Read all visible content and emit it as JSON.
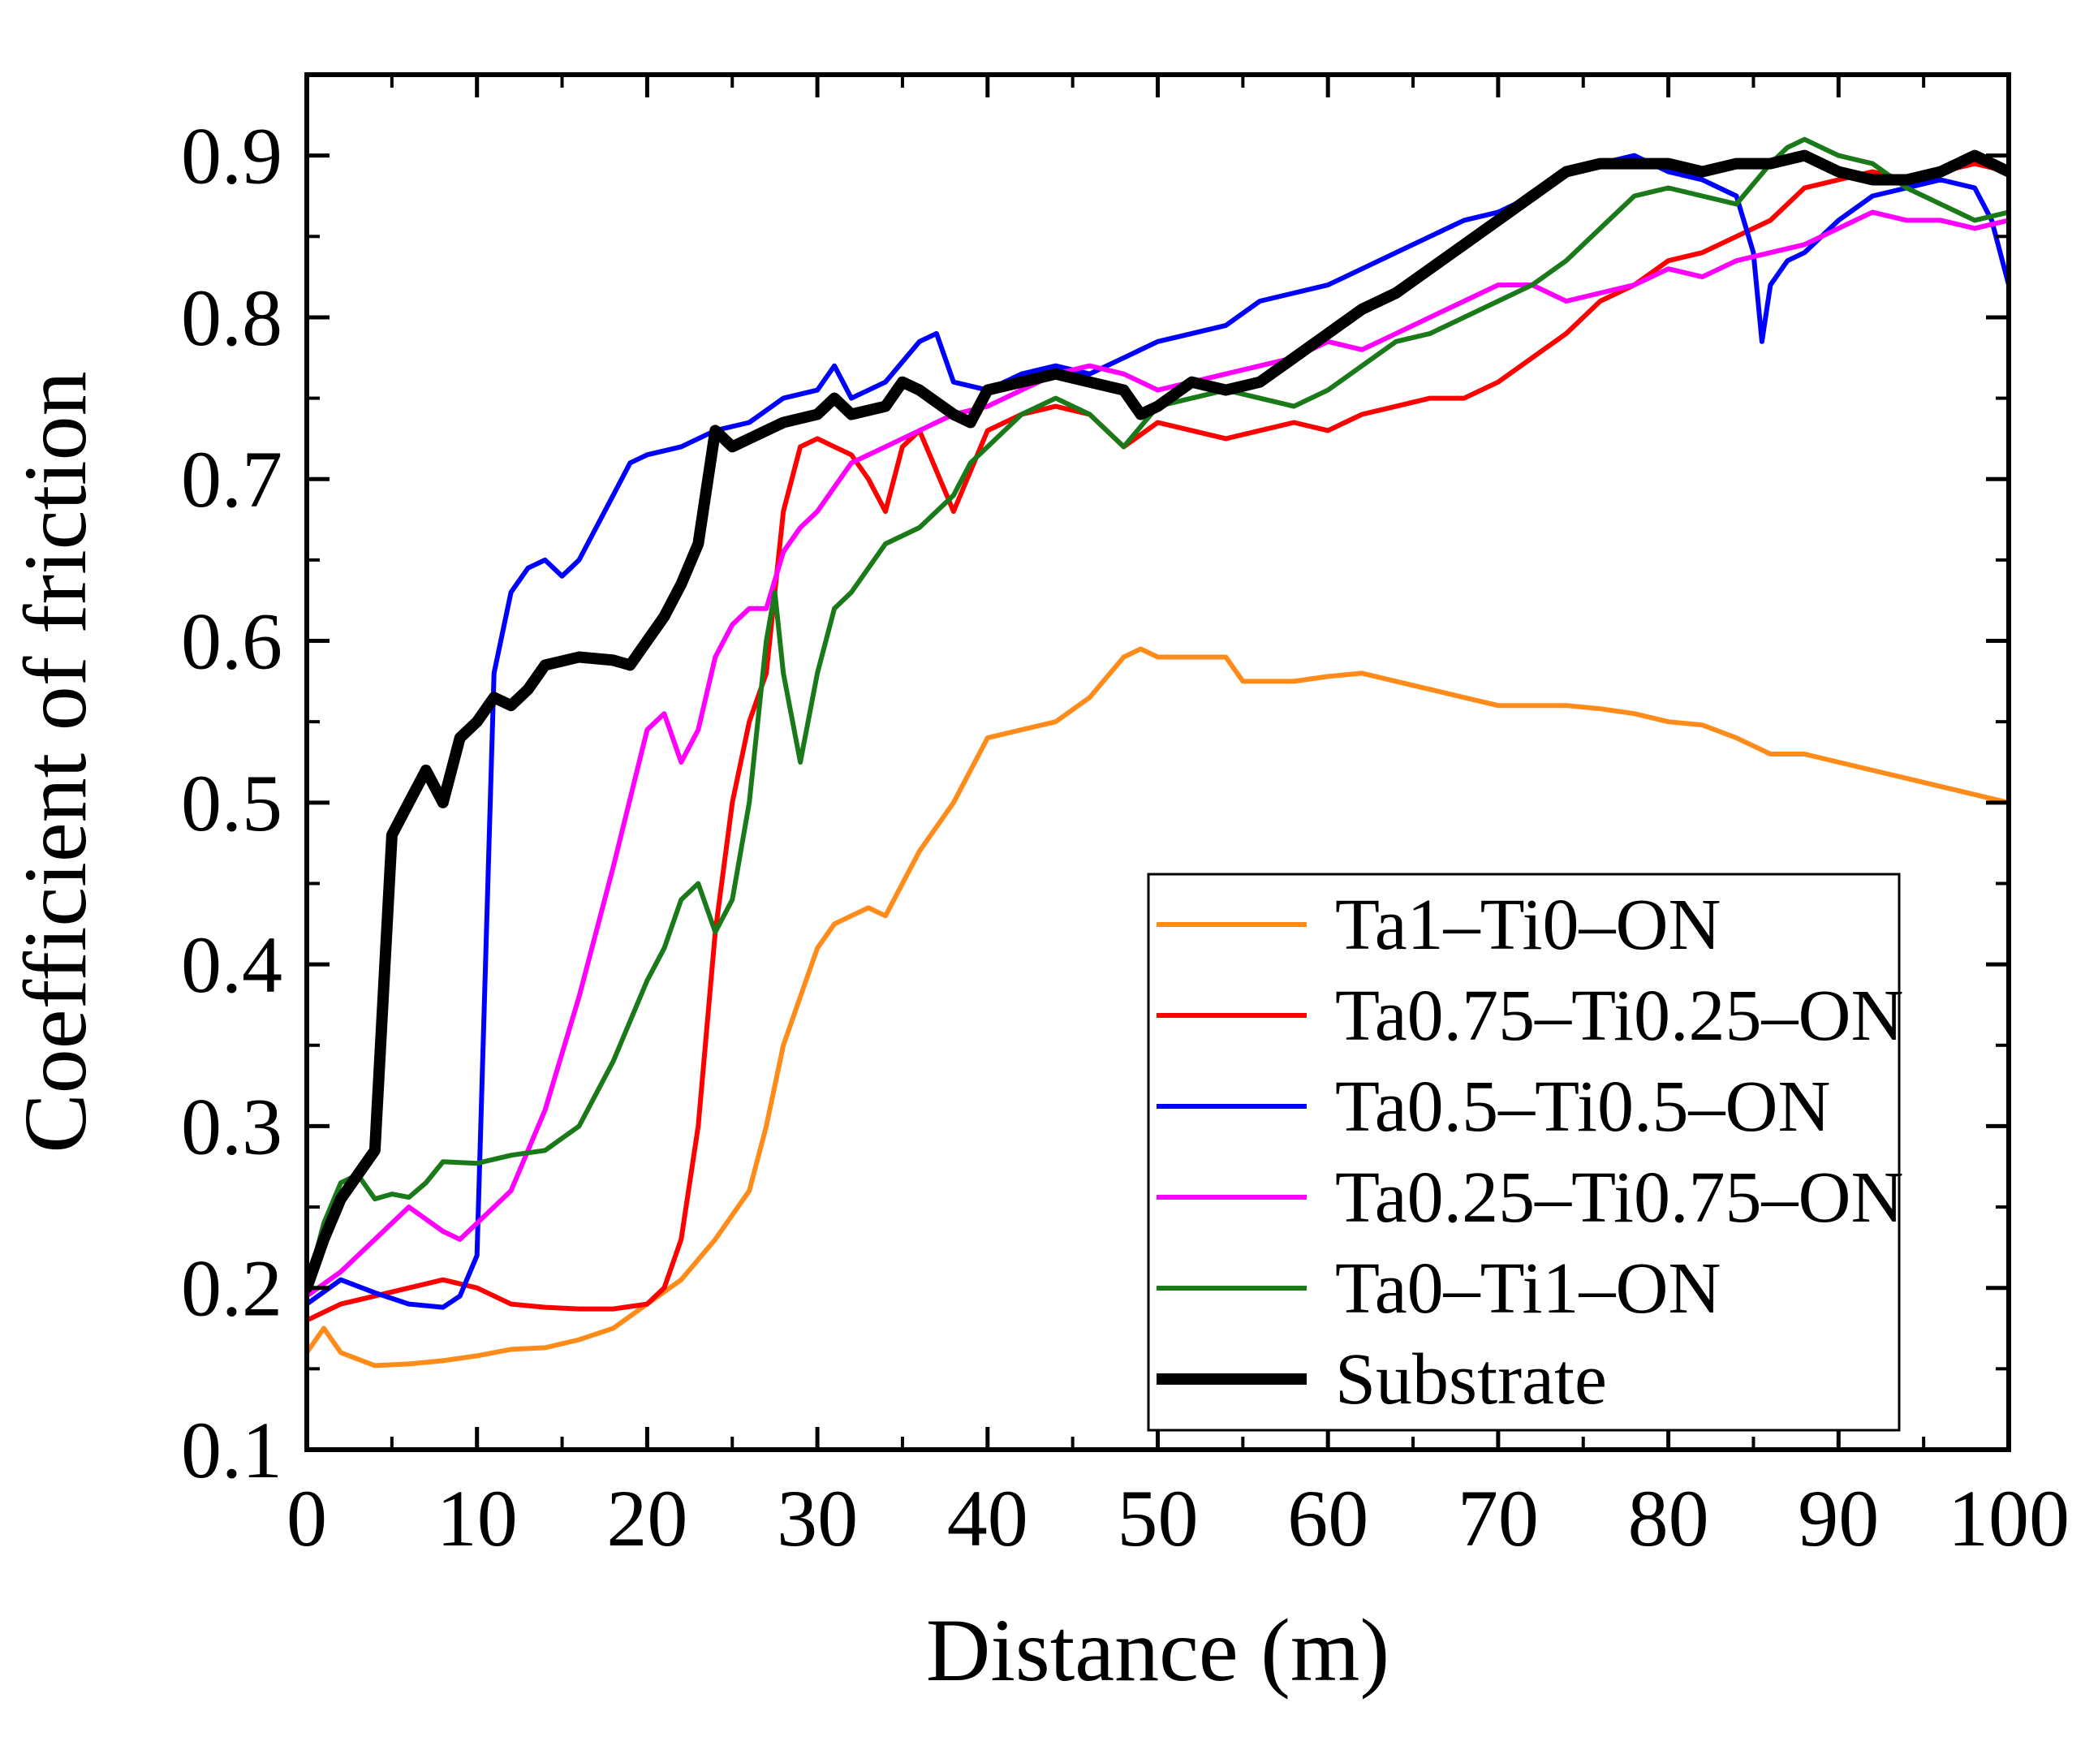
{
  "chart_data": {
    "type": "line",
    "title": "",
    "xlabel": "Distance (m)",
    "ylabel": "Coefficient of friction",
    "xlim": [
      0,
      100
    ],
    "ylim": [
      0.1,
      0.95
    ],
    "xticks": [
      0,
      10,
      20,
      30,
      40,
      50,
      60,
      70,
      80,
      90,
      100
    ],
    "xtick_labels": [
      "0",
      "10",
      "20",
      "30",
      "40",
      "50",
      "60",
      "70",
      "80",
      "90",
      "100"
    ],
    "yticks": [
      0.1,
      0.2,
      0.3,
      0.4,
      0.5,
      0.6,
      0.7,
      0.8,
      0.9
    ],
    "ytick_labels": [
      "0.1",
      "0.2",
      "0.3",
      "0.4",
      "0.5",
      "0.6",
      "0.7",
      "0.8",
      "0.9"
    ],
    "grid": false,
    "legend_position": "bottom-right",
    "series": [
      {
        "name": "Ta1–Ti0–ON",
        "color": "#ff8c1a",
        "x": [
          0,
          1,
          2,
          4,
          6,
          8,
          10,
          12,
          14,
          16,
          18,
          20,
          22,
          24,
          26,
          27,
          28,
          29,
          30,
          31,
          32,
          33,
          34,
          36,
          38,
          40,
          42,
          44,
          46,
          48,
          49,
          50,
          52,
          54,
          55,
          56,
          58,
          60,
          62,
          64,
          66,
          68,
          70,
          72,
          74,
          76,
          78,
          80,
          82,
          84,
          86,
          88,
          90,
          92,
          94,
          96,
          98,
          100
        ],
        "y": [
          0.16,
          0.175,
          0.16,
          0.152,
          0.153,
          0.155,
          0.158,
          0.162,
          0.163,
          0.168,
          0.175,
          0.19,
          0.205,
          0.23,
          0.26,
          0.3,
          0.35,
          0.38,
          0.41,
          0.425,
          0.43,
          0.435,
          0.43,
          0.47,
          0.5,
          0.54,
          0.545,
          0.55,
          0.565,
          0.59,
          0.595,
          0.59,
          0.59,
          0.59,
          0.575,
          0.575,
          0.575,
          0.578,
          0.58,
          0.575,
          0.57,
          0.565,
          0.56,
          0.56,
          0.56,
          0.558,
          0.555,
          0.55,
          0.548,
          0.54,
          0.53,
          0.53,
          0.525,
          0.52,
          0.515,
          0.51,
          0.505,
          0.5
        ]
      },
      {
        "name": "Ta0.75–Ti0.25–ON",
        "color": "#ff0000",
        "x": [
          0,
          2,
          4,
          6,
          8,
          10,
          12,
          14,
          16,
          18,
          20,
          21,
          22,
          23,
          24,
          25,
          26,
          27,
          28,
          29,
          30,
          31,
          32,
          33,
          34,
          35,
          36,
          38,
          40,
          42,
          44,
          46,
          48,
          50,
          52,
          54,
          56,
          58,
          60,
          62,
          64,
          66,
          68,
          70,
          72,
          74,
          76,
          78,
          80,
          82,
          84,
          86,
          88,
          90,
          92,
          94,
          96,
          98,
          100
        ],
        "y": [
          0.18,
          0.19,
          0.195,
          0.2,
          0.205,
          0.2,
          0.19,
          0.188,
          0.187,
          0.187,
          0.19,
          0.2,
          0.23,
          0.3,
          0.42,
          0.5,
          0.55,
          0.58,
          0.68,
          0.72,
          0.725,
          0.72,
          0.715,
          0.7,
          0.68,
          0.72,
          0.73,
          0.68,
          0.73,
          0.74,
          0.745,
          0.74,
          0.72,
          0.735,
          0.73,
          0.725,
          0.73,
          0.735,
          0.73,
          0.74,
          0.745,
          0.75,
          0.75,
          0.76,
          0.775,
          0.79,
          0.81,
          0.82,
          0.835,
          0.84,
          0.85,
          0.86,
          0.88,
          0.885,
          0.89,
          0.885,
          0.89,
          0.895,
          0.89
        ]
      },
      {
        "name": "Ta0.5–Ti0.5–ON",
        "color": "#0000ff",
        "x": [
          0,
          2,
          4,
          6,
          8,
          9,
          10,
          10.5,
          11,
          12,
          13,
          14,
          15,
          16,
          18,
          19,
          20,
          22,
          24,
          26,
          28,
          30,
          31,
          32,
          34,
          36,
          37,
          38,
          40,
          42,
          44,
          46,
          48,
          50,
          52,
          54,
          56,
          58,
          60,
          62,
          64,
          66,
          68,
          70,
          72,
          74,
          76,
          78,
          80,
          82,
          84,
          85,
          85.5,
          86,
          87,
          88,
          90,
          92,
          94,
          96,
          98,
          99,
          100
        ],
        "y": [
          0.19,
          0.205,
          0.197,
          0.19,
          0.188,
          0.195,
          0.22,
          0.4,
          0.58,
          0.63,
          0.645,
          0.65,
          0.64,
          0.65,
          0.69,
          0.71,
          0.715,
          0.72,
          0.73,
          0.735,
          0.75,
          0.755,
          0.77,
          0.75,
          0.76,
          0.785,
          0.79,
          0.76,
          0.755,
          0.765,
          0.77,
          0.765,
          0.775,
          0.785,
          0.79,
          0.795,
          0.81,
          0.815,
          0.82,
          0.83,
          0.84,
          0.85,
          0.86,
          0.865,
          0.875,
          0.89,
          0.895,
          0.9,
          0.89,
          0.885,
          0.875,
          0.84,
          0.785,
          0.82,
          0.835,
          0.84,
          0.86,
          0.875,
          0.88,
          0.885,
          0.88,
          0.86,
          0.82
        ]
      },
      {
        "name": "Ta0.25–Ti0.75–ON",
        "color": "#ff00ff",
        "x": [
          0,
          2,
          4,
          6,
          8,
          9,
          10,
          12,
          14,
          16,
          18,
          20,
          21,
          22,
          23,
          24,
          25,
          26,
          27,
          28,
          29,
          30,
          32,
          34,
          36,
          38,
          40,
          42,
          44,
          46,
          48,
          50,
          52,
          54,
          56,
          58,
          60,
          62,
          64,
          66,
          68,
          70,
          72,
          74,
          76,
          78,
          80,
          82,
          84,
          86,
          88,
          90,
          92,
          94,
          96,
          98,
          100
        ],
        "y": [
          0.195,
          0.21,
          0.23,
          0.25,
          0.235,
          0.23,
          0.24,
          0.26,
          0.31,
          0.38,
          0.46,
          0.545,
          0.555,
          0.525,
          0.545,
          0.59,
          0.61,
          0.62,
          0.62,
          0.655,
          0.67,
          0.68,
          0.71,
          0.72,
          0.73,
          0.74,
          0.745,
          0.755,
          0.765,
          0.77,
          0.765,
          0.755,
          0.76,
          0.765,
          0.77,
          0.775,
          0.785,
          0.78,
          0.79,
          0.8,
          0.81,
          0.82,
          0.82,
          0.81,
          0.815,
          0.82,
          0.83,
          0.825,
          0.835,
          0.84,
          0.845,
          0.855,
          0.865,
          0.86,
          0.86,
          0.855,
          0.86
        ]
      },
      {
        "name": "Ta0–Ti1–ON",
        "color": "#1a7a1a",
        "x": [
          0,
          1,
          2,
          3,
          4,
          5,
          6,
          7,
          8,
          10,
          12,
          14,
          16,
          18,
          20,
          21,
          22,
          23,
          24,
          25,
          26,
          27,
          27.5,
          28,
          29,
          30,
          31,
          32,
          34,
          36,
          38,
          39,
          40,
          42,
          44,
          46,
          48,
          50,
          52,
          54,
          56,
          58,
          60,
          62,
          64,
          66,
          68,
          70,
          72,
          74,
          76,
          78,
          80,
          82,
          84,
          86,
          87,
          88,
          89,
          90,
          92,
          94,
          96,
          98,
          100
        ],
        "y": [
          0.2,
          0.24,
          0.265,
          0.27,
          0.255,
          0.258,
          0.256,
          0.265,
          0.278,
          0.277,
          0.282,
          0.285,
          0.3,
          0.34,
          0.39,
          0.41,
          0.44,
          0.45,
          0.42,
          0.44,
          0.5,
          0.6,
          0.63,
          0.58,
          0.525,
          0.58,
          0.62,
          0.63,
          0.66,
          0.67,
          0.69,
          0.71,
          0.72,
          0.74,
          0.75,
          0.74,
          0.72,
          0.745,
          0.75,
          0.755,
          0.75,
          0.745,
          0.755,
          0.77,
          0.785,
          0.79,
          0.8,
          0.81,
          0.82,
          0.835,
          0.855,
          0.875,
          0.88,
          0.875,
          0.87,
          0.895,
          0.905,
          0.91,
          0.905,
          0.9,
          0.895,
          0.88,
          0.87,
          0.86,
          0.865
        ]
      },
      {
        "name": "Substrate",
        "color": "#000000",
        "x": [
          0,
          1,
          2,
          3,
          4,
          5,
          6,
          7,
          8,
          9,
          10,
          11,
          12,
          13,
          14,
          16,
          18,
          19,
          20,
          21,
          22,
          23,
          24,
          25,
          26,
          28,
          30,
          31,
          32,
          34,
          35,
          36,
          38,
          39,
          40,
          42,
          44,
          46,
          48,
          49,
          50,
          52,
          54,
          56,
          58,
          60,
          62,
          64,
          66,
          68,
          70,
          72,
          74,
          76,
          78,
          80,
          82,
          84,
          86,
          88,
          90,
          92,
          94,
          96,
          98,
          100
        ],
        "y": [
          0.2,
          0.23,
          0.255,
          0.27,
          0.285,
          0.48,
          0.5,
          0.52,
          0.5,
          0.54,
          0.55,
          0.565,
          0.56,
          0.57,
          0.585,
          0.59,
          0.588,
          0.585,
          0.6,
          0.615,
          0.635,
          0.66,
          0.73,
          0.72,
          0.725,
          0.735,
          0.74,
          0.75,
          0.74,
          0.745,
          0.76,
          0.755,
          0.74,
          0.735,
          0.755,
          0.76,
          0.765,
          0.76,
          0.755,
          0.74,
          0.745,
          0.76,
          0.755,
          0.76,
          0.775,
          0.79,
          0.805,
          0.815,
          0.83,
          0.845,
          0.86,
          0.875,
          0.89,
          0.895,
          0.895,
          0.895,
          0.89,
          0.895,
          0.895,
          0.9,
          0.89,
          0.885,
          0.885,
          0.89,
          0.9,
          0.89
        ]
      }
    ]
  }
}
